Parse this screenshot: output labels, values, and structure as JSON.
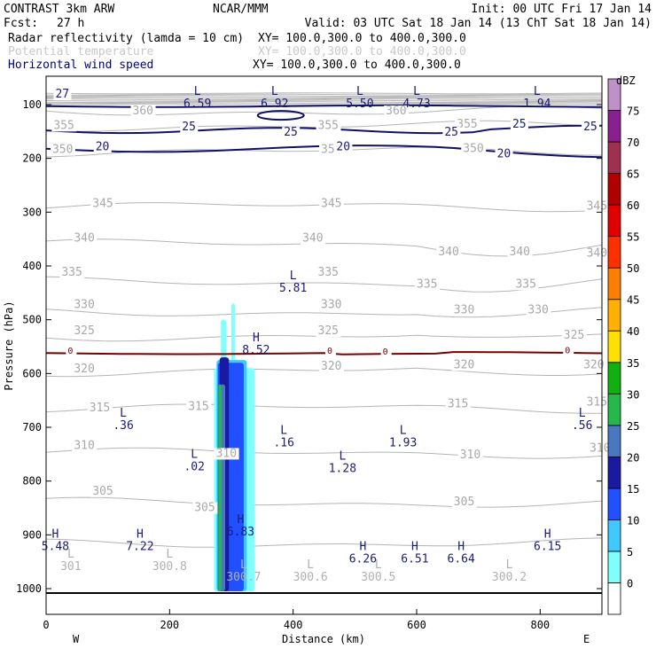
{
  "header": {
    "model": "CONTRAST  3km ARW",
    "org": "NCAR/MMM",
    "init": "Init: 00 UTC Fri 17 Jan 14",
    "fcst_label": "Fcst:",
    "fcst_value": "27 h",
    "valid": "Valid: 03 UTC Sat 18 Jan 14 (13 ChT Sat 18 Jan 14)",
    "fields": [
      {
        "name": "Radar reflectivity (lamda = 10 cm)",
        "xy": "XY= 100.0,300.0 to 400.0,300.0"
      },
      {
        "name": "Potential temperature",
        "xy": "XY= 100.0,300.0 to 400.0,300.0"
      },
      {
        "name": "Horizontal wind speed",
        "xy": "XY= 100.0,300.0 to 400.0,300.0"
      }
    ]
  },
  "chart_data": {
    "type": "cross-section",
    "xlabel": "Distance (km)",
    "ylabel": "Pressure (hPa)",
    "xlim": [
      0,
      900
    ],
    "ylim": [
      1010,
      75
    ],
    "x_ticks": [
      "0",
      "200",
      "400",
      "600",
      "800"
    ],
    "x_tick_values": [
      0,
      200,
      400,
      600,
      800
    ],
    "y_ticks": [
      "100",
      "200",
      "300",
      "400",
      "500",
      "600",
      "700",
      "800",
      "900",
      "1000"
    ],
    "y_tick_values": [
      100,
      200,
      300,
      400,
      500,
      600,
      700,
      800,
      900,
      1000
    ],
    "left_end": "W",
    "right_end": "E",
    "colorbar": {
      "unit": "dBZ",
      "levels": [
        "0",
        "5",
        "10",
        "15",
        "20",
        "25",
        "30",
        "35",
        "40",
        "45",
        "50",
        "55",
        "60",
        "65",
        "70",
        "75"
      ],
      "colors": [
        "#ffffff",
        "#80ffff",
        "#40c8ff",
        "#2050ff",
        "#1a1aa0",
        "#4a78c0",
        "#26b84a",
        "#10b010",
        "#ffe000",
        "#ffb000",
        "#ff8000",
        "#ff3000",
        "#e00000",
        "#b00000",
        "#a03050",
        "#8a2090",
        "#c090c8"
      ]
    },
    "theta_labels": [
      {
        "text": "360",
        "x": 140,
        "p": 118
      },
      {
        "text": "360",
        "x": 550,
        "p": 118
      },
      {
        "text": "355",
        "x": 12,
        "p": 145
      },
      {
        "text": "355",
        "x": 440,
        "p": 145
      },
      {
        "text": "355",
        "x": 665,
        "p": 143
      },
      {
        "text": "350",
        "x": 10,
        "p": 190
      },
      {
        "text": "350",
        "x": 445,
        "p": 190
      },
      {
        "text": "350",
        "x": 675,
        "p": 188
      },
      {
        "text": "345",
        "x": 75,
        "p": 290
      },
      {
        "text": "345",
        "x": 445,
        "p": 290
      },
      {
        "text": "345",
        "x": 875,
        "p": 295
      },
      {
        "text": "340",
        "x": 45,
        "p": 355
      },
      {
        "text": "340",
        "x": 415,
        "p": 355
      },
      {
        "text": "340",
        "x": 635,
        "p": 380
      },
      {
        "text": "340",
        "x": 750,
        "p": 380
      },
      {
        "text": "340",
        "x": 875,
        "p": 383
      },
      {
        "text": "335",
        "x": 25,
        "p": 418
      },
      {
        "text": "335",
        "x": 440,
        "p": 418
      },
      {
        "text": "335",
        "x": 600,
        "p": 440
      },
      {
        "text": "335",
        "x": 760,
        "p": 440
      },
      {
        "text": "330",
        "x": 45,
        "p": 478
      },
      {
        "text": "330",
        "x": 445,
        "p": 478
      },
      {
        "text": "330",
        "x": 660,
        "p": 488
      },
      {
        "text": "330",
        "x": 780,
        "p": 488
      },
      {
        "text": "325",
        "x": 45,
        "p": 527
      },
      {
        "text": "325",
        "x": 440,
        "p": 527
      },
      {
        "text": "325",
        "x": 838,
        "p": 535
      },
      {
        "text": "320",
        "x": 45,
        "p": 598
      },
      {
        "text": "320",
        "x": 445,
        "p": 593
      },
      {
        "text": "320",
        "x": 660,
        "p": 590
      },
      {
        "text": "320",
        "x": 870,
        "p": 590
      },
      {
        "text": "315",
        "x": 70,
        "p": 670
      },
      {
        "text": "315",
        "x": 230,
        "p": 668
      },
      {
        "text": "315",
        "x": 650,
        "p": 663
      },
      {
        "text": "315",
        "x": 875,
        "p": 660
      },
      {
        "text": "310",
        "x": 45,
        "p": 740
      },
      {
        "text": "310",
        "x": 275,
        "p": 755
      },
      {
        "text": "310",
        "x": 670,
        "p": 758
      },
      {
        "text": "310",
        "x": 880,
        "p": 745
      },
      {
        "text": "305",
        "x": 75,
        "p": 825
      },
      {
        "text": "305",
        "x": 240,
        "p": 856
      },
      {
        "text": "305",
        "x": 660,
        "p": 845
      }
    ],
    "wind_labels": [
      {
        "text": "27",
        "x": 15,
        "p": 87
      },
      {
        "text": "25",
        "x": 220,
        "p": 148
      },
      {
        "text": "25",
        "x": 385,
        "p": 158
      },
      {
        "text": "25",
        "x": 645,
        "p": 158
      },
      {
        "text": "25",
        "x": 755,
        "p": 143
      },
      {
        "text": "25",
        "x": 870,
        "p": 148
      },
      {
        "text": "20",
        "x": 80,
        "p": 185
      },
      {
        "text": "20",
        "x": 470,
        "p": 185
      },
      {
        "text": "20",
        "x": 730,
        "p": 198
      }
    ],
    "freezing_labels": [
      {
        "text": "0",
        "x": 35,
        "p": 563
      },
      {
        "text": "0",
        "x": 455,
        "p": 563
      },
      {
        "text": "0",
        "x": 545,
        "p": 565
      },
      {
        "text": "0",
        "x": 840,
        "p": 562
      }
    ],
    "extrema": [
      {
        "mark": "L",
        "value": "6.59",
        "x": 245,
        "p": 82
      },
      {
        "mark": "L",
        "value": "6.92",
        "x": 370,
        "p": 82
      },
      {
        "mark": "L",
        "value": "5.50",
        "x": 508,
        "p": 82
      },
      {
        "mark": "L",
        "value": "4.73",
        "x": 600,
        "p": 82
      },
      {
        "mark": "L",
        "value": "1.94",
        "x": 795,
        "p": 82
      },
      {
        "mark": "L",
        "value": "5.81",
        "x": 400,
        "p": 425
      },
      {
        "mark": "H",
        "value": "8.52",
        "x": 340,
        "p": 540
      },
      {
        "mark": "L",
        "value": ".36",
        "x": 125,
        "p": 680
      },
      {
        "mark": "L",
        "value": ".56",
        "x": 868,
        "p": 680
      },
      {
        "mark": "L",
        "value": ".16",
        "x": 385,
        "p": 712
      },
      {
        "mark": "L",
        "value": "1.93",
        "x": 578,
        "p": 712
      },
      {
        "mark": "L",
        "value": ".02",
        "x": 240,
        "p": 757
      },
      {
        "mark": "L",
        "value": "1.28",
        "x": 480,
        "p": 760
      },
      {
        "mark": "H",
        "value": "6.83",
        "x": 315,
        "p": 878
      },
      {
        "mark": "H",
        "value": "5.48",
        "x": 15,
        "p": 905
      },
      {
        "mark": "H",
        "value": "7.22",
        "x": 152,
        "p": 905
      },
      {
        "mark": "H",
        "value": "6.26",
        "x": 513,
        "p": 928
      },
      {
        "mark": "H",
        "value": "6.51",
        "x": 597,
        "p": 928
      },
      {
        "mark": "H",
        "value": "6.64",
        "x": 672,
        "p": 928
      },
      {
        "mark": "H",
        "value": "6.15",
        "x": 812,
        "p": 905
      }
    ],
    "surface_theta": [
      {
        "mark": "L",
        "value": "301",
        "x": 40,
        "p": 965
      },
      {
        "mark": "L",
        "value": "300.8",
        "x": 200,
        "p": 965
      },
      {
        "mark": "L",
        "value": "300.7",
        "x": 320,
        "p": 985
      },
      {
        "mark": "L",
        "value": "300.6",
        "x": 428,
        "p": 985
      },
      {
        "mark": "L",
        "value": "300.5",
        "x": 538,
        "p": 985
      },
      {
        "mark": "L",
        "value": "300.2",
        "x": 750,
        "p": 985
      }
    ]
  }
}
